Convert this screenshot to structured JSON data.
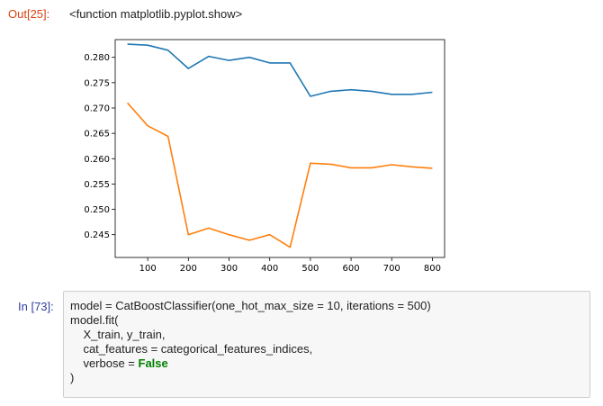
{
  "output_cell": {
    "prompt": "Out[25]:",
    "text": "<function matplotlib.pyplot.show>"
  },
  "chart_data": {
    "type": "line",
    "title": "",
    "xlabel": "",
    "ylabel": "",
    "xlim": [
      20,
      830
    ],
    "ylim": [
      0.2405,
      0.2835
    ],
    "x_ticks": [
      100,
      200,
      300,
      400,
      500,
      600,
      700,
      800
    ],
    "y_ticks": [
      0.245,
      0.25,
      0.255,
      0.26,
      0.265,
      0.27,
      0.275,
      0.28
    ],
    "x_tick_labels": [
      "100",
      "200",
      "300",
      "400",
      "500",
      "600",
      "700",
      "800"
    ],
    "y_tick_labels": [
      "0.245",
      "0.250",
      "0.255",
      "0.260",
      "0.265",
      "0.270",
      "0.275",
      "0.280"
    ],
    "grid": false,
    "series": [
      {
        "color": "#1f77b4",
        "x": [
          50,
          100,
          150,
          200,
          250,
          300,
          350,
          400,
          450,
          500,
          550,
          600,
          650,
          700,
          750,
          800
        ],
        "values": [
          0.2826,
          0.2824,
          0.2814,
          0.2778,
          0.2802,
          0.2794,
          0.28,
          0.2789,
          0.2789,
          0.2723,
          0.2733,
          0.2736,
          0.2733,
          0.2727,
          0.2727,
          0.2731
        ]
      },
      {
        "color": "#ff7f0e",
        "x": [
          50,
          100,
          150,
          200,
          250,
          300,
          350,
          400,
          450,
          500,
          550,
          600,
          650,
          700,
          750,
          800
        ],
        "values": [
          0.271,
          0.2665,
          0.2644,
          0.245,
          0.2463,
          0.245,
          0.2439,
          0.245,
          0.2425,
          0.2591,
          0.2589,
          0.2582,
          0.2582,
          0.2588,
          0.2584,
          0.2581
        ]
      }
    ]
  },
  "input_cell": {
    "prompt": "In [73]:",
    "lines": {
      "l1": "model = CatBoostClassifier(one_hot_max_size = 10, iterations = 500)",
      "l2": "model.fit(",
      "l3": "    X_train, y_train,",
      "l4": "    cat_features = categorical_features_indices,",
      "l5_pre": "    verbose = ",
      "l5_kw": "False",
      "l6": ")"
    }
  }
}
